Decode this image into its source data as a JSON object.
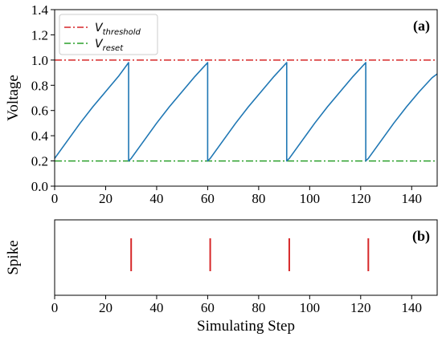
{
  "chart_data": [
    {
      "panel_label": "(a)",
      "type": "line",
      "ylabel": "Voltage",
      "xlim": [
        0,
        150
      ],
      "ylim": [
        0.0,
        1.4
      ],
      "xticks": [
        "0",
        "20",
        "40",
        "60",
        "80",
        "100",
        "120",
        "140"
      ],
      "yticks": [
        "0.0",
        "0.2",
        "0.4",
        "0.6",
        "0.8",
        "1.0",
        "1.2",
        "1.4"
      ],
      "legend_position": "top-left",
      "legend": [
        {
          "base": "V",
          "sub": "threshold",
          "color": "#d62728",
          "style": "dashdot"
        },
        {
          "base": "V",
          "sub": "reset",
          "color": "#2ca02c",
          "style": "dashdot"
        }
      ],
      "hlines": [
        {
          "y": 1.0,
          "color": "#d62728"
        },
        {
          "y": 0.2,
          "color": "#2ca02c"
        }
      ],
      "series": [
        {
          "color": "#1f77b4",
          "x": [
            0,
            5,
            10,
            15,
            20,
            25,
            29,
            29,
            30,
            35,
            40,
            45,
            50,
            55,
            60,
            60,
            61,
            66,
            71,
            76,
            81,
            86,
            91,
            91,
            92,
            97,
            102,
            107,
            112,
            117,
            122,
            122,
            123,
            128,
            133,
            138,
            143,
            148,
            150
          ],
          "y": [
            0.22,
            0.36,
            0.5,
            0.63,
            0.75,
            0.87,
            0.98,
            0.2,
            0.22,
            0.36,
            0.5,
            0.63,
            0.75,
            0.87,
            0.98,
            0.2,
            0.22,
            0.36,
            0.5,
            0.63,
            0.75,
            0.87,
            0.98,
            0.2,
            0.22,
            0.36,
            0.5,
            0.63,
            0.75,
            0.87,
            0.98,
            0.2,
            0.22,
            0.36,
            0.5,
            0.63,
            0.75,
            0.86,
            0.89
          ]
        }
      ]
    },
    {
      "panel_label": "(b)",
      "type": "event",
      "ylabel": "Spike",
      "xlabel": "Simulating Step",
      "xlim": [
        0,
        150
      ],
      "xticks": [
        "0",
        "20",
        "40",
        "60",
        "80",
        "100",
        "120",
        "140"
      ],
      "spikes": [
        30,
        61,
        92,
        123
      ],
      "spike_color": "#d62728"
    }
  ]
}
